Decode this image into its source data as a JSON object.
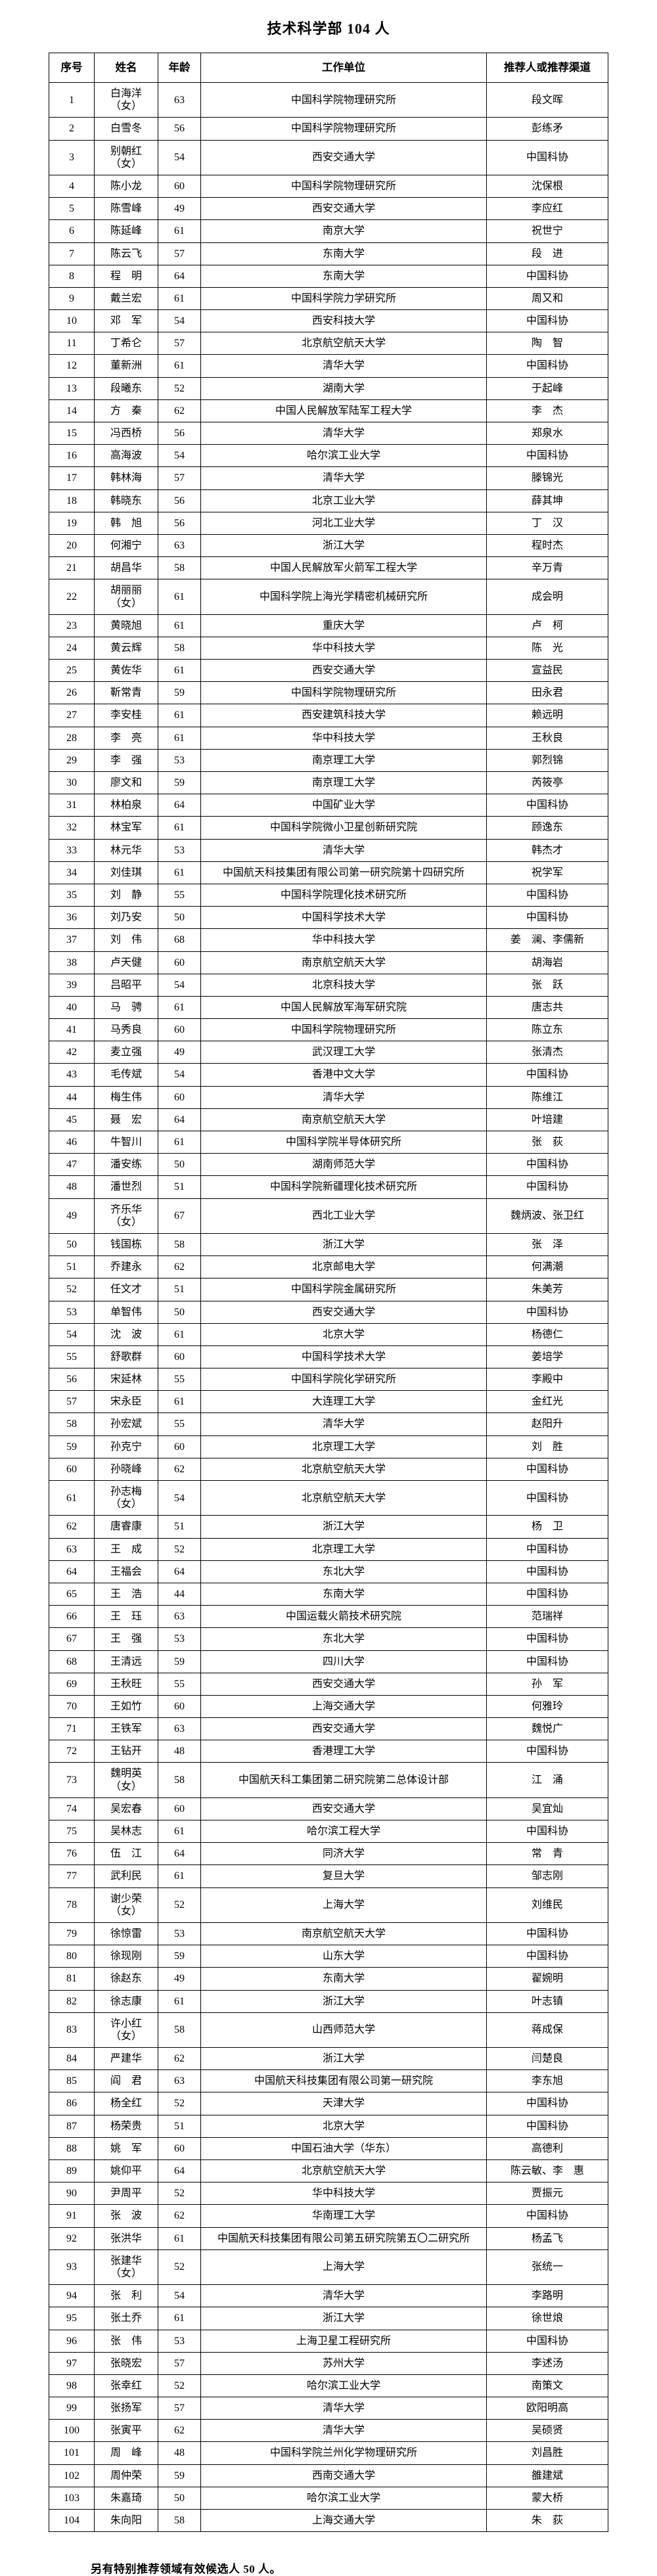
{
  "page": {
    "title": "技术科学部 104 人",
    "footer": "另有特别推荐领域有效候选人 50 人。"
  },
  "table": {
    "columns": {
      "no": "序号",
      "name": "姓名",
      "age": "年龄",
      "org": "工作单位",
      "rec": "推荐人或推荐渠道"
    },
    "rows": [
      {
        "no": "1",
        "name": "白海洋\n（女）",
        "age": "63",
        "org": "中国科学院物理研究所",
        "rec": "段文晖"
      },
      {
        "no": "2",
        "name": "白雪冬",
        "age": "56",
        "org": "中国科学院物理研究所",
        "rec": "彭练矛"
      },
      {
        "no": "3",
        "name": "别朝红\n（女）",
        "age": "54",
        "org": "西安交通大学",
        "rec": "中国科协"
      },
      {
        "no": "4",
        "name": "陈小龙",
        "age": "60",
        "org": "中国科学院物理研究所",
        "rec": "沈保根"
      },
      {
        "no": "5",
        "name": "陈雪峰",
        "age": "49",
        "org": "西安交通大学",
        "rec": "李应红"
      },
      {
        "no": "6",
        "name": "陈延峰",
        "age": "61",
        "org": "南京大学",
        "rec": "祝世宁"
      },
      {
        "no": "7",
        "name": "陈云飞",
        "age": "57",
        "org": "东南大学",
        "rec": "段　进"
      },
      {
        "no": "8",
        "name": "程　明",
        "age": "64",
        "org": "东南大学",
        "rec": "中国科协"
      },
      {
        "no": "9",
        "name": "戴兰宏",
        "age": "61",
        "org": "中国科学院力学研究所",
        "rec": "周又和"
      },
      {
        "no": "10",
        "name": "邓　军",
        "age": "54",
        "org": "西安科技大学",
        "rec": "中国科协"
      },
      {
        "no": "11",
        "name": "丁希仑",
        "age": "57",
        "org": "北京航空航天大学",
        "rec": "陶　智"
      },
      {
        "no": "12",
        "name": "董新洲",
        "age": "61",
        "org": "清华大学",
        "rec": "中国科协"
      },
      {
        "no": "13",
        "name": "段曦东",
        "age": "52",
        "org": "湖南大学",
        "rec": "于起峰"
      },
      {
        "no": "14",
        "name": "方　秦",
        "age": "62",
        "org": "中国人民解放军陆军工程大学",
        "rec": "李　杰"
      },
      {
        "no": "15",
        "name": "冯西桥",
        "age": "56",
        "org": "清华大学",
        "rec": "郑泉水"
      },
      {
        "no": "16",
        "name": "高海波",
        "age": "54",
        "org": "哈尔滨工业大学",
        "rec": "中国科协"
      },
      {
        "no": "17",
        "name": "韩林海",
        "age": "57",
        "org": "清华大学",
        "rec": "滕锦光"
      },
      {
        "no": "18",
        "name": "韩晓东",
        "age": "56",
        "org": "北京工业大学",
        "rec": "薛其坤"
      },
      {
        "no": "19",
        "name": "韩　旭",
        "age": "56",
        "org": "河北工业大学",
        "rec": "丁　汉"
      },
      {
        "no": "20",
        "name": "何湘宁",
        "age": "63",
        "org": "浙江大学",
        "rec": "程时杰"
      },
      {
        "no": "21",
        "name": "胡昌华",
        "age": "58",
        "org": "中国人民解放军火箭军工程大学",
        "rec": "辛万青"
      },
      {
        "no": "22",
        "name": "胡丽丽\n（女）",
        "age": "61",
        "org": "中国科学院上海光学精密机械研究所",
        "rec": "成会明"
      },
      {
        "no": "23",
        "name": "黄晓旭",
        "age": "61",
        "org": "重庆大学",
        "rec": "卢　柯"
      },
      {
        "no": "24",
        "name": "黄云辉",
        "age": "58",
        "org": "华中科技大学",
        "rec": "陈　光"
      },
      {
        "no": "25",
        "name": "黄佐华",
        "age": "61",
        "org": "西安交通大学",
        "rec": "宣益民"
      },
      {
        "no": "26",
        "name": "靳常青",
        "age": "59",
        "org": "中国科学院物理研究所",
        "rec": "田永君"
      },
      {
        "no": "27",
        "name": "李安桂",
        "age": "61",
        "org": "西安建筑科技大学",
        "rec": "赖远明"
      },
      {
        "no": "28",
        "name": "李　亮",
        "age": "61",
        "org": "华中科技大学",
        "rec": "王秋良"
      },
      {
        "no": "29",
        "name": "李　强",
        "age": "53",
        "org": "南京理工大学",
        "rec": "郭烈锦"
      },
      {
        "no": "30",
        "name": "廖文和",
        "age": "59",
        "org": "南京理工大学",
        "rec": "芮筱亭"
      },
      {
        "no": "31",
        "name": "林柏泉",
        "age": "64",
        "org": "中国矿业大学",
        "rec": "中国科协"
      },
      {
        "no": "32",
        "name": "林宝军",
        "age": "61",
        "org": "中国科学院微小卫星创新研究院",
        "rec": "顾逸东"
      },
      {
        "no": "33",
        "name": "林元华",
        "age": "53",
        "org": "清华大学",
        "rec": "韩杰才"
      },
      {
        "no": "34",
        "name": "刘佳琪",
        "age": "61",
        "org": "中国航天科技集团有限公司第一研究院第十四研究所",
        "rec": "祝学军"
      },
      {
        "no": "35",
        "name": "刘　静",
        "age": "55",
        "org": "中国科学院理化技术研究所",
        "rec": "中国科协"
      },
      {
        "no": "36",
        "name": "刘乃安",
        "age": "50",
        "org": "中国科学技术大学",
        "rec": "中国科协"
      },
      {
        "no": "37",
        "name": "刘　伟",
        "age": "68",
        "org": "华中科技大学",
        "rec": "姜　澜、李儒新"
      },
      {
        "no": "38",
        "name": "卢天健",
        "age": "60",
        "org": "南京航空航天大学",
        "rec": "胡海岩"
      },
      {
        "no": "39",
        "name": "吕昭平",
        "age": "54",
        "org": "北京科技大学",
        "rec": "张　跃"
      },
      {
        "no": "40",
        "name": "马　骋",
        "age": "61",
        "org": "中国人民解放军海军研究院",
        "rec": "唐志共"
      },
      {
        "no": "41",
        "name": "马秀良",
        "age": "60",
        "org": "中国科学院物理研究所",
        "rec": "陈立东"
      },
      {
        "no": "42",
        "name": "麦立强",
        "age": "49",
        "org": "武汉理工大学",
        "rec": "张清杰"
      },
      {
        "no": "43",
        "name": "毛传斌",
        "age": "54",
        "org": "香港中文大学",
        "rec": "中国科协"
      },
      {
        "no": "44",
        "name": "梅生伟",
        "age": "60",
        "org": "清华大学",
        "rec": "陈维江"
      },
      {
        "no": "45",
        "name": "聂　宏",
        "age": "64",
        "org": "南京航空航天大学",
        "rec": "叶培建"
      },
      {
        "no": "46",
        "name": "牛智川",
        "age": "61",
        "org": "中国科学院半导体研究所",
        "rec": "张　荻"
      },
      {
        "no": "47",
        "name": "潘安练",
        "age": "50",
        "org": "湖南师范大学",
        "rec": "中国科协"
      },
      {
        "no": "48",
        "name": "潘世烈",
        "age": "51",
        "org": "中国科学院新疆理化技术研究所",
        "rec": "中国科协"
      },
      {
        "no": "49",
        "name": "齐乐华\n（女）",
        "age": "67",
        "org": "西北工业大学",
        "rec": "魏炳波、张卫红"
      },
      {
        "no": "50",
        "name": "钱国栋",
        "age": "58",
        "org": "浙江大学",
        "rec": "张　泽"
      },
      {
        "no": "51",
        "name": "乔建永",
        "age": "62",
        "org": "北京邮电大学",
        "rec": "何满潮"
      },
      {
        "no": "52",
        "name": "任文才",
        "age": "51",
        "org": "中国科学院金属研究所",
        "rec": "朱美芳"
      },
      {
        "no": "53",
        "name": "单智伟",
        "age": "50",
        "org": "西安交通大学",
        "rec": "中国科协"
      },
      {
        "no": "54",
        "name": "沈　波",
        "age": "61",
        "org": "北京大学",
        "rec": "杨德仁"
      },
      {
        "no": "55",
        "name": "舒歌群",
        "age": "60",
        "org": "中国科学技术大学",
        "rec": "姜培学"
      },
      {
        "no": "56",
        "name": "宋延林",
        "age": "55",
        "org": "中国科学院化学研究所",
        "rec": "李殿中"
      },
      {
        "no": "57",
        "name": "宋永臣",
        "age": "61",
        "org": "大连理工大学",
        "rec": "金红光"
      },
      {
        "no": "58",
        "name": "孙宏斌",
        "age": "55",
        "org": "清华大学",
        "rec": "赵阳升"
      },
      {
        "no": "59",
        "name": "孙克宁",
        "age": "60",
        "org": "北京理工大学",
        "rec": "刘　胜"
      },
      {
        "no": "60",
        "name": "孙晓峰",
        "age": "62",
        "org": "北京航空航天大学",
        "rec": "中国科协"
      },
      {
        "no": "61",
        "name": "孙志梅\n（女）",
        "age": "54",
        "org": "北京航空航天大学",
        "rec": "中国科协"
      },
      {
        "no": "62",
        "name": "唐睿康",
        "age": "51",
        "org": "浙江大学",
        "rec": "杨　卫"
      },
      {
        "no": "63",
        "name": "王　成",
        "age": "52",
        "org": "北京理工大学",
        "rec": "中国科协"
      },
      {
        "no": "64",
        "name": "王福会",
        "age": "64",
        "org": "东北大学",
        "rec": "中国科协"
      },
      {
        "no": "65",
        "name": "王　浩",
        "age": "44",
        "org": "东南大学",
        "rec": "中国科协"
      },
      {
        "no": "66",
        "name": "王　珏",
        "age": "63",
        "org": "中国运载火箭技术研究院",
        "rec": "范瑞祥"
      },
      {
        "no": "67",
        "name": "王　强",
        "age": "53",
        "org": "东北大学",
        "rec": "中国科协"
      },
      {
        "no": "68",
        "name": "王清远",
        "age": "59",
        "org": "四川大学",
        "rec": "中国科协"
      },
      {
        "no": "69",
        "name": "王秋旺",
        "age": "55",
        "org": "西安交通大学",
        "rec": "孙　军"
      },
      {
        "no": "70",
        "name": "王如竹",
        "age": "60",
        "org": "上海交通大学",
        "rec": "何雅玲"
      },
      {
        "no": "71",
        "name": "王铁军",
        "age": "63",
        "org": "西安交通大学",
        "rec": "魏悦广"
      },
      {
        "no": "72",
        "name": "王钻开",
        "age": "48",
        "org": "香港理工大学",
        "rec": "中国科协"
      },
      {
        "no": "73",
        "name": "魏明英\n（女）",
        "age": "58",
        "org": "中国航天科工集团第二研究院第二总体设计部",
        "rec": "江　涌"
      },
      {
        "no": "74",
        "name": "吴宏春",
        "age": "60",
        "org": "西安交通大学",
        "rec": "吴宜灿"
      },
      {
        "no": "75",
        "name": "吴林志",
        "age": "61",
        "org": "哈尔滨工程大学",
        "rec": "中国科协"
      },
      {
        "no": "76",
        "name": "伍　江",
        "age": "64",
        "org": "同济大学",
        "rec": "常　青"
      },
      {
        "no": "77",
        "name": "武利民",
        "age": "61",
        "org": "复旦大学",
        "rec": "邹志刚"
      },
      {
        "no": "78",
        "name": "谢少荣\n（女）",
        "age": "52",
        "org": "上海大学",
        "rec": "刘维民"
      },
      {
        "no": "79",
        "name": "徐惊雷",
        "age": "53",
        "org": "南京航空航天大学",
        "rec": "中国科协"
      },
      {
        "no": "80",
        "name": "徐现刚",
        "age": "59",
        "org": "山东大学",
        "rec": "中国科协"
      },
      {
        "no": "81",
        "name": "徐赵东",
        "age": "49",
        "org": "东南大学",
        "rec": "翟婉明"
      },
      {
        "no": "82",
        "name": "徐志康",
        "age": "61",
        "org": "浙江大学",
        "rec": "叶志镇"
      },
      {
        "no": "83",
        "name": "许小红\n（女）",
        "age": "58",
        "org": "山西师范大学",
        "rec": "蒋成保"
      },
      {
        "no": "84",
        "name": "严建华",
        "age": "62",
        "org": "浙江大学",
        "rec": "闫楚良"
      },
      {
        "no": "85",
        "name": "阎　君",
        "age": "63",
        "org": "中国航天科技集团有限公司第一研究院",
        "rec": "李东旭"
      },
      {
        "no": "86",
        "name": "杨全红",
        "age": "52",
        "org": "天津大学",
        "rec": "中国科协"
      },
      {
        "no": "87",
        "name": "杨荣贵",
        "age": "51",
        "org": "北京大学",
        "rec": "中国科协"
      },
      {
        "no": "88",
        "name": "姚　军",
        "age": "60",
        "org": "中国石油大学（华东）",
        "rec": "高德利"
      },
      {
        "no": "89",
        "name": "姚仰平",
        "age": "64",
        "org": "北京航空航天大学",
        "rec": "陈云敏、李　惠"
      },
      {
        "no": "90",
        "name": "尹周平",
        "age": "52",
        "org": "华中科技大学",
        "rec": "贾振元"
      },
      {
        "no": "91",
        "name": "张　波",
        "age": "62",
        "org": "华南理工大学",
        "rec": "中国科协"
      },
      {
        "no": "92",
        "name": "张洪华",
        "age": "61",
        "org": "中国航天科技集团有限公司第五研究院第五〇二研究所",
        "rec": "杨孟飞"
      },
      {
        "no": "93",
        "name": "张建华\n（女）",
        "age": "52",
        "org": "上海大学",
        "rec": "张统一"
      },
      {
        "no": "94",
        "name": "张　利",
        "age": "54",
        "org": "清华大学",
        "rec": "李路明"
      },
      {
        "no": "95",
        "name": "张土乔",
        "age": "61",
        "org": "浙江大学",
        "rec": "徐世烺"
      },
      {
        "no": "96",
        "name": "张　伟",
        "age": "53",
        "org": "上海卫星工程研究所",
        "rec": "中国科协"
      },
      {
        "no": "97",
        "name": "张晓宏",
        "age": "57",
        "org": "苏州大学",
        "rec": "李述汤"
      },
      {
        "no": "98",
        "name": "张幸红",
        "age": "52",
        "org": "哈尔滨工业大学",
        "rec": "南策文"
      },
      {
        "no": "99",
        "name": "张扬军",
        "age": "57",
        "org": "清华大学",
        "rec": "欧阳明高"
      },
      {
        "no": "100",
        "name": "张寅平",
        "age": "62",
        "org": "清华大学",
        "rec": "吴硕贤"
      },
      {
        "no": "101",
        "name": "周　峰",
        "age": "48",
        "org": "中国科学院兰州化学物理研究所",
        "rec": "刘昌胜"
      },
      {
        "no": "102",
        "name": "周仲荣",
        "age": "59",
        "org": "西南交通大学",
        "rec": "雒建斌"
      },
      {
        "no": "103",
        "name": "朱嘉琦",
        "age": "50",
        "org": "哈尔滨工业大学",
        "rec": "蒙大桥"
      },
      {
        "no": "104",
        "name": "朱向阳",
        "age": "58",
        "org": "上海交通大学",
        "rec": "朱　荻"
      }
    ]
  }
}
